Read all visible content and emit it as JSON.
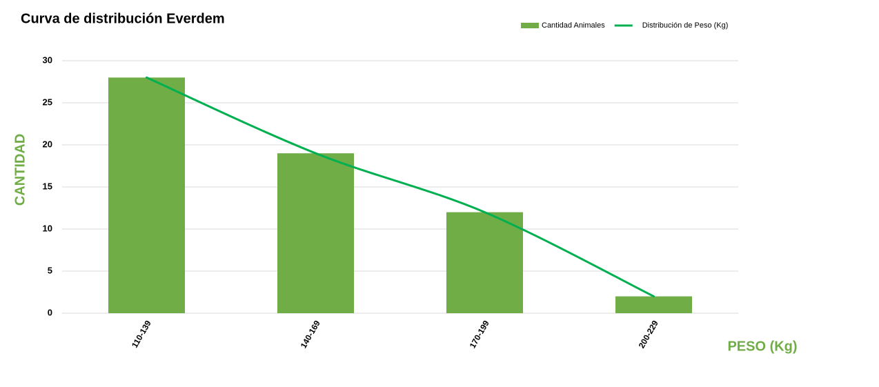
{
  "chart_data": {
    "type": "bar",
    "title": "Curva de distribución Everdem",
    "x_label": "PESO (Kg)",
    "y_label": "CANTIDAD",
    "categories": [
      "110-139",
      "140-169",
      "170-199",
      "200-229"
    ],
    "series": [
      {
        "name": "Cantidad Animales",
        "type": "bar",
        "color": "#70ad47",
        "values": [
          28,
          19,
          12,
          2
        ]
      },
      {
        "name": "Distribución de Peso (Kg)",
        "type": "line",
        "smooth": true,
        "color": "#00b050",
        "values": [
          28,
          19,
          12,
          2
        ]
      }
    ],
    "ylim": [
      0,
      30
    ],
    "yticks": [
      0,
      5,
      10,
      15,
      20,
      25,
      30
    ],
    "grid": true,
    "legend": "top-right"
  }
}
